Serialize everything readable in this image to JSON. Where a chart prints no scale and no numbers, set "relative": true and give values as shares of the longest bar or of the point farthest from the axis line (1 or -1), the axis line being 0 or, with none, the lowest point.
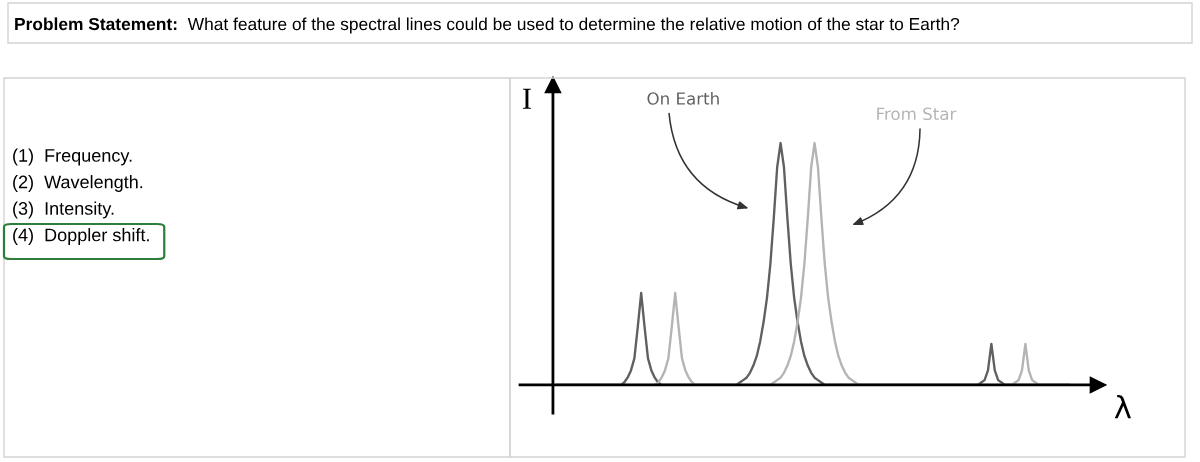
{
  "chart_data": {
    "type": "line",
    "title": "Problem Statement:",
    "subtitle": "What feature of the spectral lines could be used to determine the relative motion of the star to Earth?",
    "xlabel": "λ",
    "ylabel": "I",
    "annotations": [
      "(1)  Frequency.",
      "(2)  Wavelength.",
      "(3)  Intensity.",
      "(4)  Doppler shift."
    ],
    "relative": true,
    "categories": [
      null,
      null,
      null,
      null,
      null,
      null,
      null,
      null,
      null,
      null,
      null,
      null,
      null,
      null,
      null,
      null,
      null,
      null,
      null,
      null,
      null,
      null,
      null,
      null,
      null,
      null,
      null,
      null,
      null,
      null,
      null,
      null,
      null,
      null,
      null,
      null,
      null,
      null,
      null,
      null,
      null,
      null,
      null,
      null,
      null,
      null,
      null,
      null,
      null,
      null,
      null,
      null,
      null,
      null,
      null,
      null,
      null,
      null,
      null,
      null,
      null,
      null,
      null,
      null,
      null,
      null,
      null,
      null,
      null,
      null,
      null,
      null,
      null,
      null,
      null,
      null,
      null,
      null,
      null,
      null,
      null,
      null,
      null,
      null,
      null,
      null,
      null,
      null,
      null,
      null,
      null,
      null,
      null,
      null,
      null,
      null,
      null,
      null,
      null,
      null,
      null,
      null,
      null,
      null,
      null,
      null,
      null,
      null,
      null,
      null,
      null,
      null,
      null,
      null,
      null,
      null,
      null,
      null,
      null,
      null,
      null,
      null,
      null,
      null,
      null,
      null,
      null,
      null,
      null,
      null,
      null,
      null,
      null,
      null,
      null,
      null,
      null,
      null,
      null,
      null,
      null,
      null,
      null,
      null,
      null,
      null,
      null,
      null,
      null,
      null,
      null,
      null
    ],
    "series": [
      {
        "name": "On Earth",
        "color": "#606060",
        "values": [
          0,
          0,
          0,
          0,
          0,
          0,
          0,
          0,
          0,
          0,
          0,
          0,
          0,
          0,
          0,
          0,
          0,
          0,
          0,
          0,
          0.01,
          0.03,
          0.06,
          0.11,
          0.24,
          0.38,
          0.24,
          0.11,
          0.06,
          0.03,
          0.01,
          0,
          0,
          0,
          0,
          0,
          0,
          0,
          0,
          0,
          0,
          0,
          0,
          0,
          0,
          0,
          0,
          0,
          0,
          0,
          0,
          0,
          0,
          0,
          0.01,
          0.02,
          0.03,
          0.05,
          0.08,
          0.12,
          0.18,
          0.26,
          0.36,
          0.5,
          0.69,
          0.9,
          1,
          0.9,
          0.69,
          0.5,
          0.36,
          0.26,
          0.18,
          0.12,
          0.08,
          0.05,
          0.03,
          0.02,
          0.01,
          0,
          0,
          0,
          0,
          0,
          0,
          0,
          0,
          0,
          0,
          0,
          0,
          0,
          0,
          0,
          0,
          0,
          0,
          0,
          0,
          0,
          0,
          0,
          0,
          0,
          0,
          0,
          0,
          0,
          0,
          0,
          0,
          0,
          0,
          0,
          0,
          0,
          0,
          0,
          0,
          0,
          0,
          0,
          0,
          0,
          0,
          0.01,
          0.02,
          0.06,
          0.17,
          0.06,
          0.02,
          0.01,
          0,
          0,
          0,
          0,
          0,
          0,
          0,
          0,
          0,
          0,
          0,
          0,
          0,
          0,
          0,
          0,
          0,
          0,
          0,
          0
        ]
      },
      {
        "name": "From Star",
        "color": "#b4b4b4",
        "values": [
          0,
          0,
          0,
          0,
          0,
          0,
          0,
          0,
          0,
          0,
          0,
          0,
          0,
          0,
          0,
          0,
          0,
          0,
          0,
          0,
          0,
          0,
          0,
          0,
          0,
          0,
          0,
          0,
          0,
          0,
          0.01,
          0.03,
          0.06,
          0.11,
          0.24,
          0.38,
          0.24,
          0.11,
          0.06,
          0.03,
          0.01,
          0,
          0,
          0,
          0,
          0,
          0,
          0,
          0,
          0,
          0,
          0,
          0,
          0,
          0,
          0,
          0,
          0,
          0,
          0,
          0,
          0,
          0,
          0,
          0.01,
          0.02,
          0.03,
          0.05,
          0.08,
          0.12,
          0.18,
          0.26,
          0.36,
          0.5,
          0.69,
          0.9,
          1,
          0.9,
          0.69,
          0.5,
          0.36,
          0.26,
          0.18,
          0.12,
          0.08,
          0.05,
          0.03,
          0.02,
          0.01,
          0,
          0,
          0,
          0,
          0,
          0,
          0,
          0,
          0,
          0,
          0,
          0,
          0,
          0,
          0,
          0,
          0,
          0,
          0,
          0,
          0,
          0,
          0,
          0,
          0,
          0,
          0,
          0,
          0,
          0,
          0,
          0,
          0,
          0,
          0,
          0,
          0,
          0,
          0,
          0,
          0,
          0,
          0,
          0,
          0,
          0,
          0.01,
          0.02,
          0.06,
          0.17,
          0.06,
          0.02,
          0.01,
          0,
          0,
          0,
          0,
          0,
          0,
          0,
          0,
          0,
          0
        ]
      }
    ]
  }
}
